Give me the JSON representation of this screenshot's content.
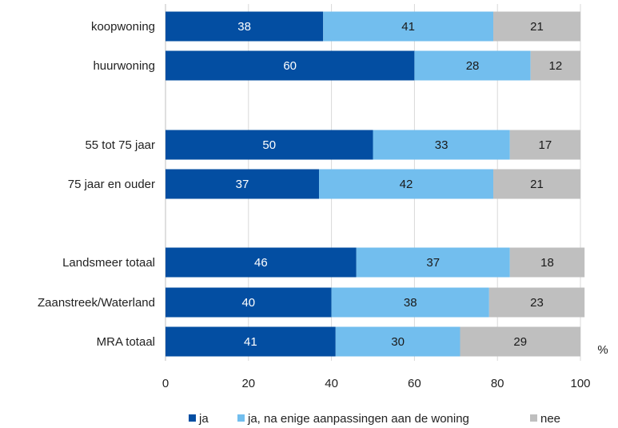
{
  "chart_data": {
    "type": "bar",
    "orientation": "horizontal",
    "stacked": true,
    "categories": [
      "koopwoning",
      "huurwoning",
      "55 tot 75 jaar",
      "75 jaar en ouder",
      "Landsmeer totaal",
      "Zaanstreek/Waterland",
      "MRA totaal"
    ],
    "groups": [
      [
        0,
        1
      ],
      [
        2,
        3
      ],
      [
        4,
        5,
        6
      ]
    ],
    "series": [
      {
        "name": "ja",
        "color": "#034EA2",
        "label_color": "#ffffff",
        "values": [
          38,
          60,
          50,
          37,
          46,
          40,
          41
        ]
      },
      {
        "name": "ja, na enige aanpassingen aan de woning",
        "color": "#72BEEE",
        "label_color": "#1a1a1a",
        "values": [
          41,
          28,
          33,
          42,
          37,
          38,
          30
        ]
      },
      {
        "name": "nee",
        "color": "#BFBFBF",
        "label_color": "#1a1a1a",
        "values": [
          21,
          12,
          17,
          21,
          18,
          23,
          29
        ]
      }
    ],
    "xlim": [
      0,
      100
    ],
    "xticks": [
      "0",
      "20",
      "40",
      "60",
      "80",
      "100"
    ],
    "unit_label": "%",
    "grid": true,
    "legend_position": "bottom"
  }
}
